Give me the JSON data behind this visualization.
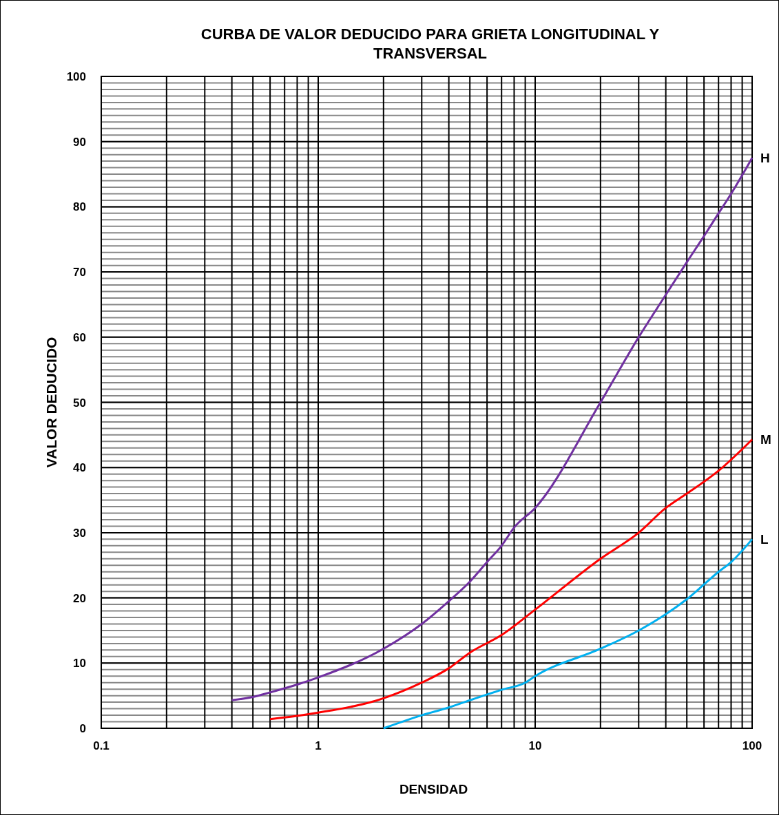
{
  "chart_data": {
    "type": "line",
    "title": "CURBA DE VALOR DEDUCIDO PARA GRIETA LONGITUDINAL Y TRANSVERSAL",
    "xlabel": "DENSIDAD",
    "ylabel": "VALOR DEDUCIDO",
    "log": "x",
    "grid": true,
    "marker": "none",
    "line_style": "solid",
    "xlim": [
      0.1,
      100
    ],
    "xticks": [
      0.1,
      1,
      10,
      100
    ],
    "ylim": [
      0,
      100
    ],
    "yticks": [
      0,
      10,
      20,
      30,
      40,
      50,
      60,
      70,
      80,
      90,
      100
    ],
    "series": [
      {
        "name": "H",
        "color": "#7030a0",
        "x": [
          0.4,
          0.5,
          0.6,
          0.8,
          1,
          2,
          3,
          4,
          5,
          6,
          7,
          8,
          10,
          20,
          30,
          40,
          50,
          60,
          70,
          80,
          100
        ],
        "values": [
          4.3,
          4.8,
          5.5,
          6.7,
          7.8,
          12.2,
          16,
          19.5,
          22.5,
          25.5,
          28,
          30.8,
          33.8,
          50,
          60,
          66.5,
          71.5,
          75.5,
          79,
          82,
          87.5
        ]
      },
      {
        "name": "M",
        "color": "#ff0000",
        "x": [
          0.6,
          0.8,
          1,
          2,
          3,
          4,
          5,
          7,
          10,
          20,
          30,
          40,
          50,
          70,
          100
        ],
        "values": [
          1.4,
          1.9,
          2.4,
          4.6,
          7,
          9.2,
          11.6,
          14.3,
          18.2,
          26,
          30,
          33.8,
          36,
          39.5,
          44.3
        ]
      },
      {
        "name": "L",
        "color": "#00b0f0",
        "x": [
          2,
          3,
          4,
          5,
          7,
          9,
          10,
          20,
          30,
          40,
          50,
          70,
          80,
          100
        ],
        "values": [
          0,
          2,
          3.2,
          4.3,
          5.9,
          7,
          8,
          12.2,
          15,
          17.5,
          19.8,
          24,
          25.5,
          29
        ]
      }
    ]
  }
}
